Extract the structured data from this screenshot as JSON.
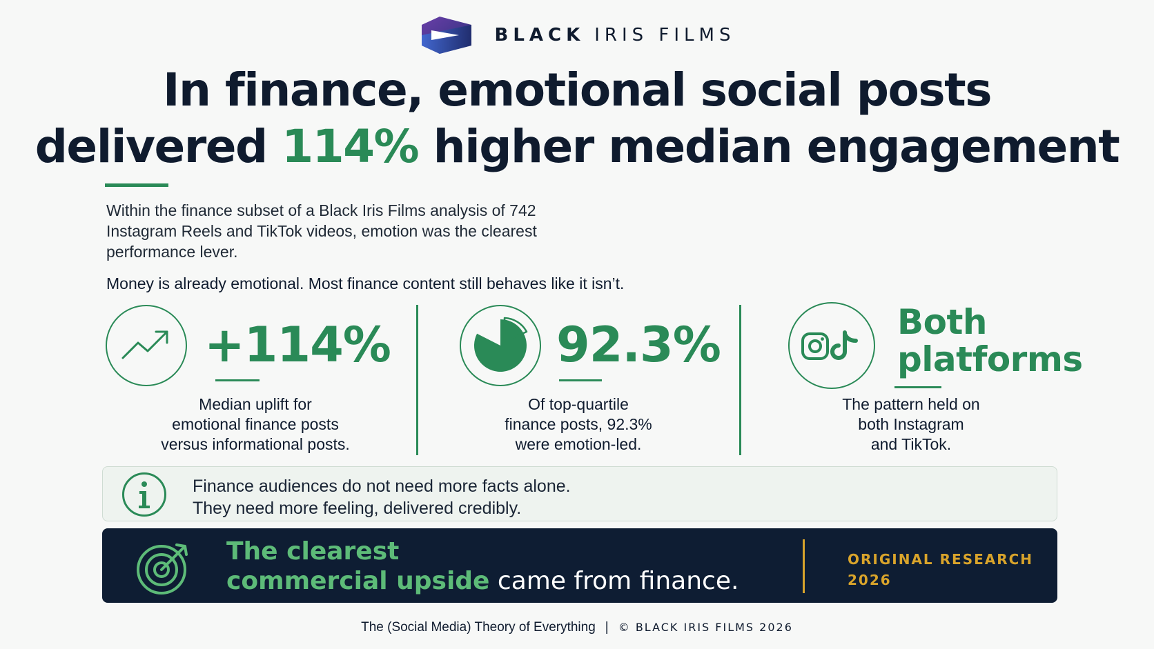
{
  "brand": {
    "name_bold": "BLACK",
    "name_light": "IRIS FILMS",
    "logo_icon": "black-iris-logo-icon"
  },
  "headline": {
    "line1": "In finance, emotional social posts",
    "line2_pre": "delivered",
    "line2_accent": "114%",
    "line2_post": "higher median engagement"
  },
  "intro": {
    "line1": "Within the finance subset of a Black Iris Films analysis of 742",
    "line2": "Instagram Reels and TikTok videos, emotion was the clearest",
    "line3": "performance lever."
  },
  "lede": "Money is already emotional. Most finance content still behaves like it isn’t.",
  "stats": [
    {
      "icon": "trend-up-icon",
      "value": "+114%",
      "caption": [
        "Median uplift for",
        "emotional finance posts",
        "versus informational posts."
      ]
    },
    {
      "icon": "pie-chart-icon",
      "value": "92.3%",
      "caption": [
        "Of top-quartile",
        "finance posts, 92.3%",
        "were emotion-led."
      ]
    },
    {
      "icons": [
        "instagram-icon",
        "tiktok-icon"
      ],
      "value_line1": "Both",
      "value_line2": "platforms",
      "caption": [
        "The pattern held on",
        "both Instagram",
        "and TikTok."
      ]
    }
  ],
  "callout": {
    "icon": "info-icon",
    "line1": "Finance audiences do not need more facts alone.",
    "line2": "They need more feeling, delivered credibly."
  },
  "banner": {
    "icon": "target-icon",
    "line1_highlight": "The clearest",
    "line2_highlight": "commercial upside",
    "line2_rest": "came from finance.",
    "tag_line1": "ORIGINAL RESEARCH",
    "tag_line2": "2026"
  },
  "footer": {
    "title": "The (Social Media) Theory of Everything",
    "separator": "|",
    "copyright": "© BLACK IRIS FILMS 2026"
  },
  "colors": {
    "navy": "#0f1b2e",
    "green": "#2a8a57",
    "light_green": "#5dbb78",
    "gold": "#d9a42b",
    "banner_bg": "#0e1d33"
  }
}
